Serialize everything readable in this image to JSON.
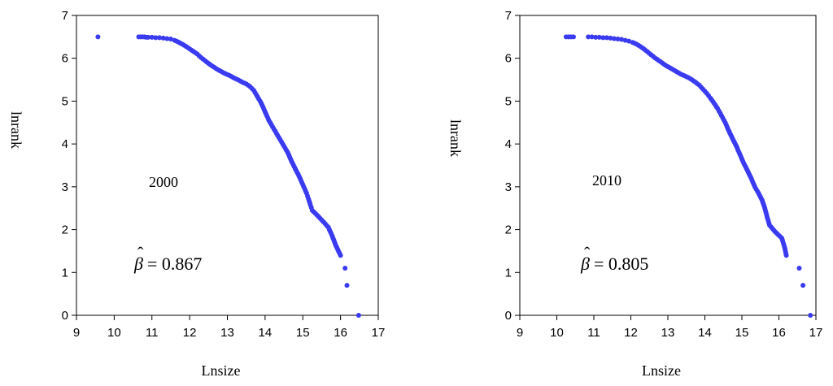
{
  "chart_data": [
    {
      "type": "scatter",
      "title": "",
      "xlabel": "Lnsize",
      "ylabel": "lnrank",
      "xlim": [
        9,
        17
      ],
      "ylim": [
        0,
        7
      ],
      "xticks": [
        "9",
        "10",
        "11",
        "12",
        "13",
        "14",
        "15",
        "16",
        "17"
      ],
      "yticks": [
        "0",
        "1",
        "2",
        "3",
        "4",
        "5",
        "6",
        "7"
      ],
      "annotations": {
        "year": "2000",
        "beta_symbol": "β",
        "beta_equals": "= 0.867"
      },
      "color": "#3a3af0",
      "points": [
        [
          9.57,
          6.5
        ],
        [
          10.65,
          6.5
        ],
        [
          10.7,
          6.5
        ],
        [
          10.75,
          6.5
        ],
        [
          10.8,
          6.5
        ],
        [
          10.85,
          6.49
        ],
        [
          10.9,
          6.49
        ],
        [
          11.0,
          6.49
        ],
        [
          11.1,
          6.48
        ],
        [
          11.2,
          6.48
        ],
        [
          11.3,
          6.47
        ],
        [
          11.4,
          6.46
        ],
        [
          11.5,
          6.45
        ],
        [
          11.6,
          6.42
        ],
        [
          11.7,
          6.38
        ],
        [
          11.8,
          6.33
        ],
        [
          11.9,
          6.28
        ],
        [
          12.0,
          6.22
        ],
        [
          12.1,
          6.16
        ],
        [
          12.2,
          6.1
        ],
        [
          12.3,
          6.02
        ],
        [
          12.4,
          5.95
        ],
        [
          12.5,
          5.88
        ],
        [
          12.6,
          5.82
        ],
        [
          12.7,
          5.76
        ],
        [
          12.8,
          5.71
        ],
        [
          12.9,
          5.66
        ],
        [
          13.0,
          5.62
        ],
        [
          13.1,
          5.58
        ],
        [
          13.2,
          5.53
        ],
        [
          13.3,
          5.49
        ],
        [
          13.4,
          5.44
        ],
        [
          13.5,
          5.4
        ],
        [
          13.6,
          5.34
        ],
        [
          13.7,
          5.25
        ],
        [
          13.8,
          5.1
        ],
        [
          13.9,
          4.95
        ],
        [
          14.0,
          4.75
        ],
        [
          14.1,
          4.55
        ],
        [
          14.2,
          4.4
        ],
        [
          14.3,
          4.25
        ],
        [
          14.4,
          4.1
        ],
        [
          14.5,
          3.95
        ],
        [
          14.6,
          3.8
        ],
        [
          14.7,
          3.6
        ],
        [
          14.8,
          3.42
        ],
        [
          14.9,
          3.25
        ],
        [
          15.0,
          3.05
        ],
        [
          15.1,
          2.85
        ],
        [
          15.15,
          2.72
        ],
        [
          15.2,
          2.58
        ],
        [
          15.25,
          2.45
        ],
        [
          15.42,
          2.3
        ],
        [
          15.55,
          2.18
        ],
        [
          15.68,
          2.05
        ],
        [
          15.78,
          1.85
        ],
        [
          15.88,
          1.62
        ],
        [
          16.0,
          1.4
        ],
        [
          16.12,
          1.1
        ],
        [
          16.17,
          0.7
        ],
        [
          16.48,
          0.0
        ]
      ]
    },
    {
      "type": "scatter",
      "title": "",
      "xlabel": "Lnsize",
      "ylabel": "lnrank",
      "xlim": [
        9,
        17
      ],
      "ylim": [
        0,
        7
      ],
      "xticks": [
        "9",
        "10",
        "11",
        "12",
        "13",
        "14",
        "15",
        "16",
        "17"
      ],
      "yticks": [
        "0",
        "1",
        "2",
        "3",
        "4",
        "5",
        "6",
        "7"
      ],
      "annotations": {
        "year": "2010",
        "beta_symbol": "β",
        "beta_equals": "= 0.805"
      },
      "color": "#3a3af0",
      "points": [
        [
          10.25,
          6.5
        ],
        [
          10.45,
          6.5
        ],
        [
          10.85,
          6.5
        ],
        [
          10.95,
          6.5
        ],
        [
          11.05,
          6.49
        ],
        [
          11.15,
          6.49
        ],
        [
          11.25,
          6.48
        ],
        [
          11.35,
          6.48
        ],
        [
          11.45,
          6.47
        ],
        [
          11.55,
          6.46
        ],
        [
          11.65,
          6.45
        ],
        [
          11.75,
          6.44
        ],
        [
          11.85,
          6.42
        ],
        [
          11.95,
          6.4
        ],
        [
          12.05,
          6.37
        ],
        [
          12.15,
          6.33
        ],
        [
          12.25,
          6.28
        ],
        [
          12.35,
          6.22
        ],
        [
          12.45,
          6.15
        ],
        [
          12.55,
          6.08
        ],
        [
          12.65,
          6.01
        ],
        [
          12.75,
          5.95
        ],
        [
          12.85,
          5.89
        ],
        [
          12.95,
          5.83
        ],
        [
          13.05,
          5.78
        ],
        [
          13.15,
          5.73
        ],
        [
          13.25,
          5.68
        ],
        [
          13.35,
          5.63
        ],
        [
          13.45,
          5.59
        ],
        [
          13.55,
          5.55
        ],
        [
          13.65,
          5.5
        ],
        [
          13.75,
          5.44
        ],
        [
          13.85,
          5.37
        ],
        [
          13.95,
          5.28
        ],
        [
          14.05,
          5.18
        ],
        [
          14.15,
          5.07
        ],
        [
          14.25,
          4.95
        ],
        [
          14.35,
          4.82
        ],
        [
          14.45,
          4.66
        ],
        [
          14.55,
          4.5
        ],
        [
          14.65,
          4.3
        ],
        [
          14.75,
          4.12
        ],
        [
          14.85,
          3.95
        ],
        [
          14.95,
          3.75
        ],
        [
          15.05,
          3.55
        ],
        [
          15.15,
          3.38
        ],
        [
          15.25,
          3.2
        ],
        [
          15.35,
          3.0
        ],
        [
          15.45,
          2.85
        ],
        [
          15.55,
          2.68
        ],
        [
          15.62,
          2.5
        ],
        [
          15.68,
          2.3
        ],
        [
          15.75,
          2.1
        ],
        [
          15.9,
          1.95
        ],
        [
          16.08,
          1.8
        ],
        [
          16.15,
          1.6
        ],
        [
          16.2,
          1.4
        ],
        [
          16.55,
          1.1
        ],
        [
          16.65,
          0.7
        ],
        [
          16.85,
          0.0
        ]
      ]
    }
  ]
}
